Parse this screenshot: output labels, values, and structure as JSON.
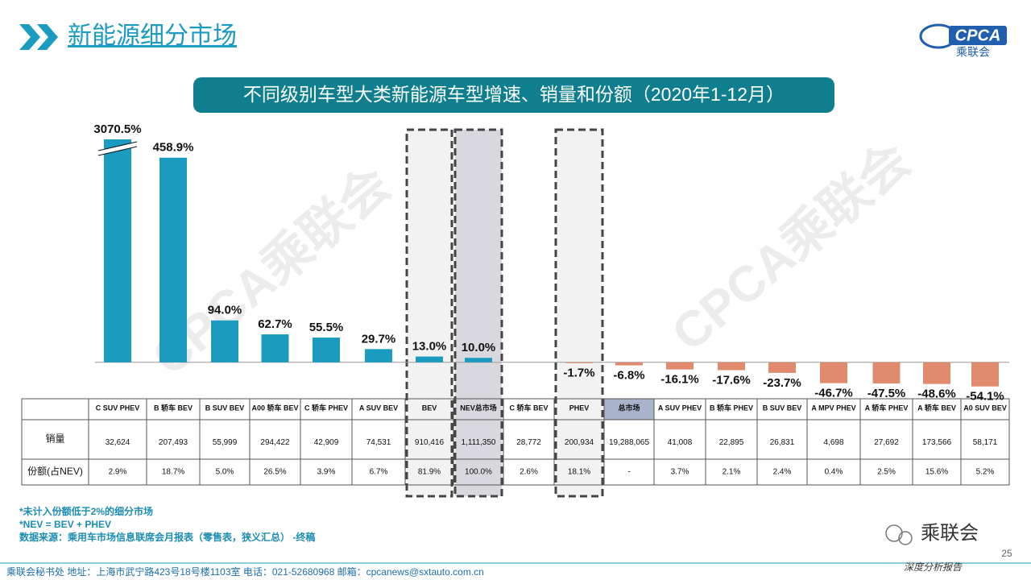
{
  "header": {
    "title": "新能源细分市场",
    "logo": "CPCA",
    "logo_sub": "乘联会"
  },
  "chart_data": {
    "type": "bar",
    "title": "不同级别车型大类新能源车型增速、销量和份额（2020年1-12月）",
    "categories": [
      "C SUV PHEV",
      "B 轿车 BEV",
      "B SUV BEV",
      "A00 轿车 BEV",
      "C 轿车 PHEV",
      "A SUV BEV",
      "BEV",
      "NEV总市场",
      "C 轿车 BEV",
      "PHEV",
      "总市场",
      "A SUV PHEV",
      "B 轿车 PHEV",
      "B SUV BEV",
      "A MPV PHEV",
      "A 轿车 PHEV",
      "A 轿车 BEV",
      "A0 SUV BEV"
    ],
    "values": [
      3070.5,
      458.9,
      94.0,
      62.7,
      55.5,
      29.7,
      13.0,
      10.0,
      null,
      -1.7,
      -6.8,
      -16.1,
      -17.6,
      -23.7,
      -46.7,
      -47.5,
      -48.6,
      -54.1
    ],
    "value_labels": [
      "3070.5%",
      "458.9%",
      "94.0%",
      "62.7%",
      "55.5%",
      "29.7%",
      "13.0%",
      "10.0%",
      null,
      "-1.7%",
      "-6.8%",
      "-16.1%",
      "-17.6%",
      "-23.7%",
      "-46.7%",
      "-47.5%",
      "-48.6%",
      "-54.1%"
    ],
    "positive_color": "#1a9bbf",
    "negative_color": "#e08b6d",
    "ylim": [
      -60,
      500
    ],
    "axis_break": true,
    "table": {
      "row_labels": [
        "销量",
        "份额(占NEV)"
      ],
      "sales": [
        "32,624",
        "207,493",
        "55,999",
        "294,422",
        "42,909",
        "74,531",
        "910,416",
        "1,111,350",
        "28,772",
        "200,934",
        "19,288,065",
        "41,008",
        "22,895",
        "26,831",
        "4,698",
        "27,692",
        "173,566",
        "58,171"
      ],
      "shares": [
        "2.9%",
        "18.7%",
        "5.0%",
        "26.5%",
        "3.9%",
        "6.7%",
        "81.9%",
        "100.0%",
        "2.6%",
        "18.1%",
        "-",
        "3.7%",
        "2.1%",
        "2.4%",
        "0.4%",
        "2.5%",
        "15.6%",
        "5.2%"
      ]
    }
  },
  "watermark": "CPCA乘联会",
  "notes": [
    "*未计入份额低于2%的细分市场",
    "*NEV = BEV + PHEV",
    "数据来源：乘用车市场信息联席会月报表（零售表，狭义汇总） -终稿"
  ],
  "footer": {
    "address": "乘联会秘书处   地址：上海市武宁路423号18号楼1103室    电话：021-52680968    邮箱：cpcanews@sxtauto.com.cn",
    "page": "25",
    "wechat": "乘联会",
    "report": "深度分析报告"
  }
}
